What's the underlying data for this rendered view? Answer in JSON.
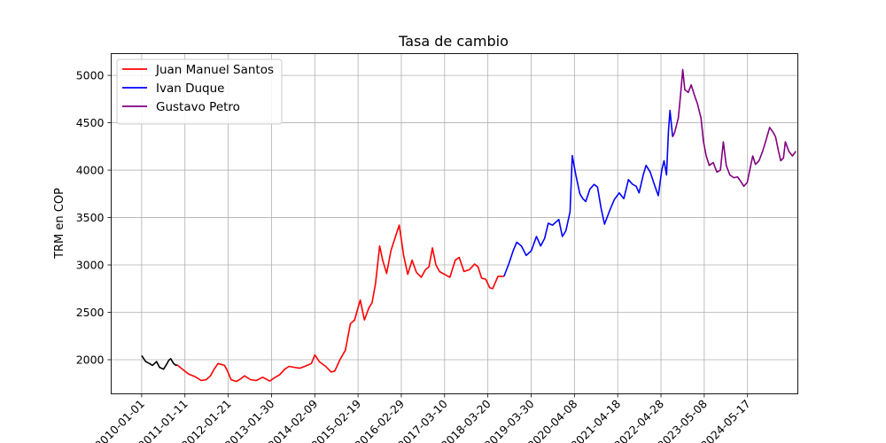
{
  "chart_data": {
    "type": "line",
    "title": "Tasa de cambio",
    "xlabel": "",
    "ylabel": "TRM en COP",
    "grid": true,
    "legend_position": "top-left",
    "xlim": [
      "2009-04-12",
      "2025-07-27"
    ],
    "ylim": [
      1640,
      5230
    ],
    "x_tick_labels": [
      "2010-01-01",
      "2011-01-11",
      "2012-01-21",
      "2013-01-30",
      "2014-02-09",
      "2015-02-19",
      "2016-02-29",
      "2017-03-10",
      "2018-03-20",
      "2019-03-30",
      "2020-04-08",
      "2021-04-18",
      "2022-04-28",
      "2023-05-08",
      "2024-05-17"
    ],
    "y_ticks": [
      2000,
      2500,
      3000,
      3500,
      4000,
      4500,
      5000
    ],
    "series": [
      {
        "name": "",
        "color": "#000000",
        "points": [
          [
            "2010-01-01",
            2044
          ],
          [
            "2010-02-05",
            1980
          ],
          [
            "2010-03-10",
            1960
          ],
          [
            "2010-04-05",
            1940
          ],
          [
            "2010-05-10",
            1980
          ],
          [
            "2010-06-05",
            1920
          ],
          [
            "2010-07-10",
            1900
          ],
          [
            "2010-08-05",
            1950
          ],
          [
            "2010-08-25",
            1995
          ],
          [
            "2010-09-10",
            2010
          ],
          [
            "2010-10-05",
            1960
          ],
          [
            "2010-10-25",
            1940
          ],
          [
            "2010-11-05",
            1945
          ]
        ]
      },
      {
        "name": "Juan Manuel Santos",
        "color": "#ff0000",
        "points": [
          [
            "2010-11-05",
            1945
          ],
          [
            "2010-12-20",
            1900
          ],
          [
            "2011-02-10",
            1850
          ],
          [
            "2011-04-10",
            1820
          ],
          [
            "2011-06-01",
            1780
          ],
          [
            "2011-07-15",
            1790
          ],
          [
            "2011-08-20",
            1830
          ],
          [
            "2011-09-20",
            1900
          ],
          [
            "2011-10-25",
            1960
          ],
          [
            "2011-12-20",
            1940
          ],
          [
            "2012-01-15",
            1880
          ],
          [
            "2012-02-15",
            1790
          ],
          [
            "2012-04-01",
            1770
          ],
          [
            "2012-05-10",
            1800
          ],
          [
            "2012-06-10",
            1830
          ],
          [
            "2012-08-01",
            1790
          ],
          [
            "2012-09-20",
            1780
          ],
          [
            "2012-11-15",
            1815
          ],
          [
            "2013-01-15",
            1775
          ],
          [
            "2013-02-25",
            1810
          ],
          [
            "2013-04-10",
            1840
          ],
          [
            "2013-05-25",
            1900
          ],
          [
            "2013-07-01",
            1930
          ],
          [
            "2013-08-15",
            1920
          ],
          [
            "2013-10-01",
            1910
          ],
          [
            "2013-11-15",
            1930
          ],
          [
            "2014-01-10",
            1960
          ],
          [
            "2014-02-10",
            2050
          ],
          [
            "2014-03-20",
            1980
          ],
          [
            "2014-05-15",
            1930
          ],
          [
            "2014-07-01",
            1870
          ],
          [
            "2014-08-01",
            1880
          ],
          [
            "2014-09-15",
            2000
          ],
          [
            "2014-11-01",
            2100
          ],
          [
            "2014-12-15",
            2380
          ],
          [
            "2015-01-20",
            2420
          ],
          [
            "2015-03-10",
            2630
          ],
          [
            "2015-04-15",
            2420
          ],
          [
            "2015-05-25",
            2550
          ],
          [
            "2015-06-20",
            2600
          ],
          [
            "2015-07-20",
            2800
          ],
          [
            "2015-08-25",
            3200
          ],
          [
            "2015-09-20",
            3050
          ],
          [
            "2015-10-25",
            2910
          ],
          [
            "2015-12-01",
            3150
          ],
          [
            "2016-01-10",
            3300
          ],
          [
            "2016-02-11",
            3420
          ],
          [
            "2016-03-20",
            3100
          ],
          [
            "2016-04-25",
            2900
          ],
          [
            "2016-06-01",
            3050
          ],
          [
            "2016-07-10",
            2920
          ],
          [
            "2016-08-20",
            2870
          ],
          [
            "2016-09-25",
            2950
          ],
          [
            "2016-10-25",
            2980
          ],
          [
            "2016-11-25",
            3180
          ],
          [
            "2016-12-25",
            3000
          ],
          [
            "2017-01-25",
            2930
          ],
          [
            "2017-03-10",
            2900
          ],
          [
            "2017-04-25",
            2870
          ],
          [
            "2017-06-10",
            3050
          ],
          [
            "2017-07-15",
            3080
          ],
          [
            "2017-08-25",
            2930
          ],
          [
            "2017-10-10",
            2950
          ],
          [
            "2017-11-25",
            3010
          ],
          [
            "2017-12-25",
            2980
          ],
          [
            "2018-01-25",
            2860
          ],
          [
            "2018-03-01",
            2850
          ],
          [
            "2018-04-05",
            2760
          ],
          [
            "2018-05-01",
            2750
          ],
          [
            "2018-06-15",
            2880
          ],
          [
            "2018-08-07",
            2880
          ]
        ]
      },
      {
        "name": "Ivan Duque",
        "color": "#0000ff",
        "points": [
          [
            "2018-08-07",
            2880
          ],
          [
            "2018-09-20",
            3020
          ],
          [
            "2018-10-25",
            3150
          ],
          [
            "2018-11-25",
            3240
          ],
          [
            "2019-01-05",
            3200
          ],
          [
            "2019-02-15",
            3100
          ],
          [
            "2019-04-01",
            3150
          ],
          [
            "2019-05-15",
            3300
          ],
          [
            "2019-06-20",
            3200
          ],
          [
            "2019-07-25",
            3280
          ],
          [
            "2019-08-25",
            3440
          ],
          [
            "2019-10-01",
            3420
          ],
          [
            "2019-11-25",
            3480
          ],
          [
            "2019-12-25",
            3300
          ],
          [
            "2020-01-25",
            3360
          ],
          [
            "2020-03-01",
            3560
          ],
          [
            "2020-03-20",
            4153
          ],
          [
            "2020-04-20",
            3950
          ],
          [
            "2020-05-25",
            3750
          ],
          [
            "2020-06-20",
            3700
          ],
          [
            "2020-07-15",
            3670
          ],
          [
            "2020-08-20",
            3800
          ],
          [
            "2020-09-25",
            3850
          ],
          [
            "2020-10-25",
            3820
          ],
          [
            "2020-11-25",
            3600
          ],
          [
            "2020-12-25",
            3430
          ],
          [
            "2021-02-10",
            3580
          ],
          [
            "2021-03-20",
            3690
          ],
          [
            "2021-05-01",
            3760
          ],
          [
            "2021-06-10",
            3700
          ],
          [
            "2021-07-20",
            3900
          ],
          [
            "2021-08-25",
            3850
          ],
          [
            "2021-09-25",
            3830
          ],
          [
            "2021-10-20",
            3760
          ],
          [
            "2021-11-25",
            3950
          ],
          [
            "2021-12-20",
            4050
          ],
          [
            "2022-01-25",
            3980
          ],
          [
            "2022-03-01",
            3850
          ],
          [
            "2022-04-05",
            3730
          ],
          [
            "2022-05-05",
            4000
          ],
          [
            "2022-05-25",
            4100
          ],
          [
            "2022-06-15",
            3950
          ],
          [
            "2022-07-01",
            4400
          ],
          [
            "2022-07-15",
            4630
          ],
          [
            "2022-08-07",
            4350
          ]
        ]
      },
      {
        "name": "Gustavo Petro",
        "color": "#800080",
        "points": [
          [
            "2022-08-07",
            4350
          ],
          [
            "2022-08-25",
            4400
          ],
          [
            "2022-09-25",
            4550
          ],
          [
            "2022-10-15",
            4800
          ],
          [
            "2022-11-03",
            5061
          ],
          [
            "2022-11-20",
            4850
          ],
          [
            "2022-12-20",
            4820
          ],
          [
            "2023-01-15",
            4900
          ],
          [
            "2023-02-10",
            4800
          ],
          [
            "2023-03-10",
            4700
          ],
          [
            "2023-04-10",
            4550
          ],
          [
            "2023-05-01",
            4300
          ],
          [
            "2023-05-25",
            4150
          ],
          [
            "2023-06-20",
            4050
          ],
          [
            "2023-07-25",
            4080
          ],
          [
            "2023-08-25",
            3980
          ],
          [
            "2023-09-25",
            4000
          ],
          [
            "2023-10-20",
            4300
          ],
          [
            "2023-11-15",
            4050
          ],
          [
            "2023-12-15",
            3950
          ],
          [
            "2024-01-20",
            3920
          ],
          [
            "2024-02-20",
            3930
          ],
          [
            "2024-03-20",
            3880
          ],
          [
            "2024-04-15",
            3830
          ],
          [
            "2024-05-15",
            3870
          ],
          [
            "2024-06-05",
            4000
          ],
          [
            "2024-07-01",
            4150
          ],
          [
            "2024-07-25",
            4060
          ],
          [
            "2024-08-25",
            4100
          ],
          [
            "2024-09-25",
            4200
          ],
          [
            "2024-10-25",
            4320
          ],
          [
            "2024-11-25",
            4450
          ],
          [
            "2024-12-25",
            4400
          ],
          [
            "2025-01-15",
            4350
          ],
          [
            "2025-02-10",
            4200
          ],
          [
            "2025-03-01",
            4100
          ],
          [
            "2025-03-25",
            4130
          ],
          [
            "2025-04-10",
            4300
          ],
          [
            "2025-05-10",
            4200
          ],
          [
            "2025-06-10",
            4150
          ],
          [
            "2025-07-10",
            4200
          ]
        ]
      }
    ]
  }
}
